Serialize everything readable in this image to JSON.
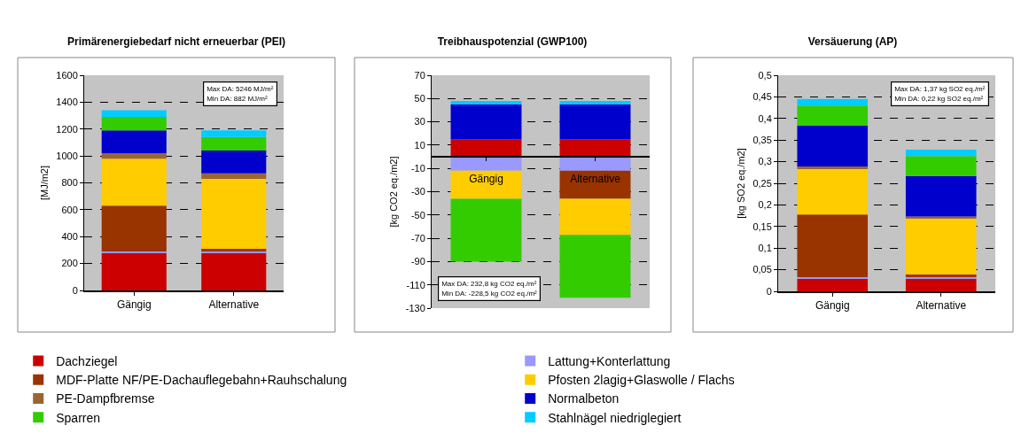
{
  "chart_data": [
    {
      "type": "bar",
      "stacked": true,
      "title": "Primärenergiebedarf nicht erneuerbar (PEI)",
      "ylabel": "[MJ/m2]",
      "categories": [
        "Gängig",
        "Alternative"
      ],
      "ylim": [
        0,
        1600
      ],
      "yticks": [
        0,
        200,
        400,
        600,
        800,
        1000,
        1200,
        1400,
        1600
      ],
      "grid": "y",
      "legend": "bottom",
      "annotations": [
        "Max DA: 5246 MJ/m²",
        "Min DA: 882 MJ/m²"
      ],
      "series": [
        {
          "name": "Dachziegel",
          "color": "#cc0000",
          "values": [
            280,
            280
          ]
        },
        {
          "name": "Lattung+Konterlattung",
          "color": "#9999ff",
          "values": [
            10,
            10
          ]
        },
        {
          "name": "MDF-Platte NF/PE-Dachauflegebahn+Rauhschalung",
          "color": "#993300",
          "values": [
            340,
            20
          ]
        },
        {
          "name": "Pfosten 2lagig+Glaswolle / Flachs",
          "color": "#ffcc00",
          "values": [
            350,
            520
          ]
        },
        {
          "name": "PE-Dampfbremse",
          "color": "#996633",
          "values": [
            40,
            40
          ]
        },
        {
          "name": "Normalbeton",
          "color": "#0000cc",
          "values": [
            170,
            170
          ]
        },
        {
          "name": "Sparren",
          "color": "#33cc00",
          "values": [
            100,
            100
          ]
        },
        {
          "name": "Stahlnägel niedriglegiert",
          "color": "#00ccff",
          "values": [
            50,
            50
          ]
        }
      ]
    },
    {
      "type": "bar",
      "stacked": true,
      "title": "Treibhauspotenzial (GWP100)",
      "ylabel": "[kg CO2 eq./m2]",
      "categories": [
        "Gängig",
        "Alternative"
      ],
      "ylim": [
        -130,
        70
      ],
      "yticks": [
        -130,
        -110,
        -90,
        -70,
        -50,
        -30,
        -10,
        10,
        30,
        50,
        70
      ],
      "grid": "y",
      "annotations": [
        "Max DA: 232,8 kg CO2 eq./m²",
        "Min DA: -228,5 kg CO2 eq./m²"
      ],
      "series": [
        {
          "color": "#cc0000",
          "values": [
            15,
            15
          ]
        },
        {
          "color": "#9999ff",
          "values": [
            -12,
            -12
          ]
        },
        {
          "color": "#993300",
          "values": [
            null,
            -24
          ]
        },
        {
          "color": "#ffcc00",
          "values": [
            -24,
            -31
          ]
        },
        {
          "color": "#0000cc",
          "values": [
            30,
            30
          ]
        },
        {
          "color": "#33cc00",
          "values": [
            -54,
            -54
          ]
        },
        {
          "color": "#00ccff",
          "values": [
            3,
            3
          ]
        }
      ]
    },
    {
      "type": "bar",
      "stacked": true,
      "title": "Versäuerung (AP)",
      "ylabel": "[kg SO2 eq./m2]",
      "categories": [
        "Gängig",
        "Alternative"
      ],
      "ylim": [
        0,
        0.5
      ],
      "yticks": [
        0,
        {
          "value": 0.05,
          "label": "0,05"
        },
        {
          "value": 0.1,
          "label": "0,1"
        },
        {
          "value": 0.15,
          "label": "0,15"
        },
        {
          "value": 0.2,
          "label": "0,2"
        },
        {
          "value": 0.25,
          "label": "0,25"
        },
        {
          "value": 0.3,
          "label": "0,3"
        },
        {
          "value": 0.35,
          "label": "0,35"
        },
        {
          "value": 0.4,
          "label": "0,4"
        },
        {
          "value": 0.45,
          "label": "0,45"
        },
        {
          "value": 0.5,
          "label": "0,5"
        }
      ],
      "grid": "y",
      "annotations": [
        "Max DA: 1,37 kg SO2 eq./m²",
        "Min DA: 0,22 kg SO2 eq./m²"
      ],
      "series": [
        {
          "color": "#cc0000",
          "values": [
            0.029,
            0.029
          ]
        },
        {
          "color": "#9999ff",
          "values": [
            0.004,
            0.004
          ]
        },
        {
          "color": "#993300",
          "values": [
            0.145,
            0.006
          ]
        },
        {
          "color": "#ffcc00",
          "values": [
            0.105,
            0.129
          ]
        },
        {
          "color": "#996633",
          "values": [
            0.006,
            0.005
          ]
        },
        {
          "color": "#0000cc",
          "values": [
            0.094,
            0.094
          ]
        },
        {
          "color": "#33cc00",
          "values": [
            0.047,
            0.046
          ]
        },
        {
          "color": "#00ccff",
          "values": [
            0.015,
            0.015
          ]
        }
      ]
    }
  ]
}
